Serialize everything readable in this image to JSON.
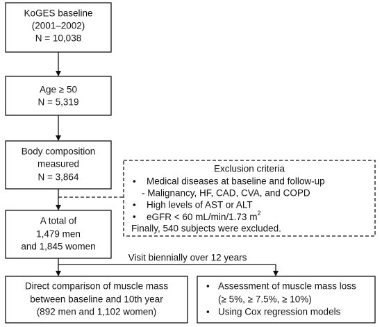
{
  "nodes": [
    {
      "lines": [
        "KoGES baseline",
        "(2001–2002)",
        "N = 10,038"
      ]
    },
    {
      "lines": [
        "Age ≥ 50",
        "N = 5,319"
      ]
    },
    {
      "lines": [
        "Body composition",
        "measured",
        "N = 3,864"
      ]
    },
    {
      "lines": [
        "A total of",
        "1,479 men",
        "and 1,845 women"
      ]
    },
    {
      "lines": [
        "Direct comparison of muscle mass",
        "between baseline and 10th year",
        "(892 men and 1,102 women)"
      ]
    },
    {
      "lines": [
        "Assessment of muscle mass loss",
        "(≥ 5%, ≥ 7.5%, ≥ 10%)",
        "Using Cox regression models"
      ]
    }
  ],
  "exclusion": {
    "title": "Exclusion criteria",
    "lines": [
      "Medical diseases at baseline and follow-up",
      "- Malignancy, HF, CAD, CVA, and COPD",
      "High levels of AST or ALT",
      "eGFR < 60 mL/min/1.73 m",
      "Finally, 540 subjects were excluded."
    ],
    "superscript": "2"
  },
  "edge_label": "Visit biennially over 12 years"
}
